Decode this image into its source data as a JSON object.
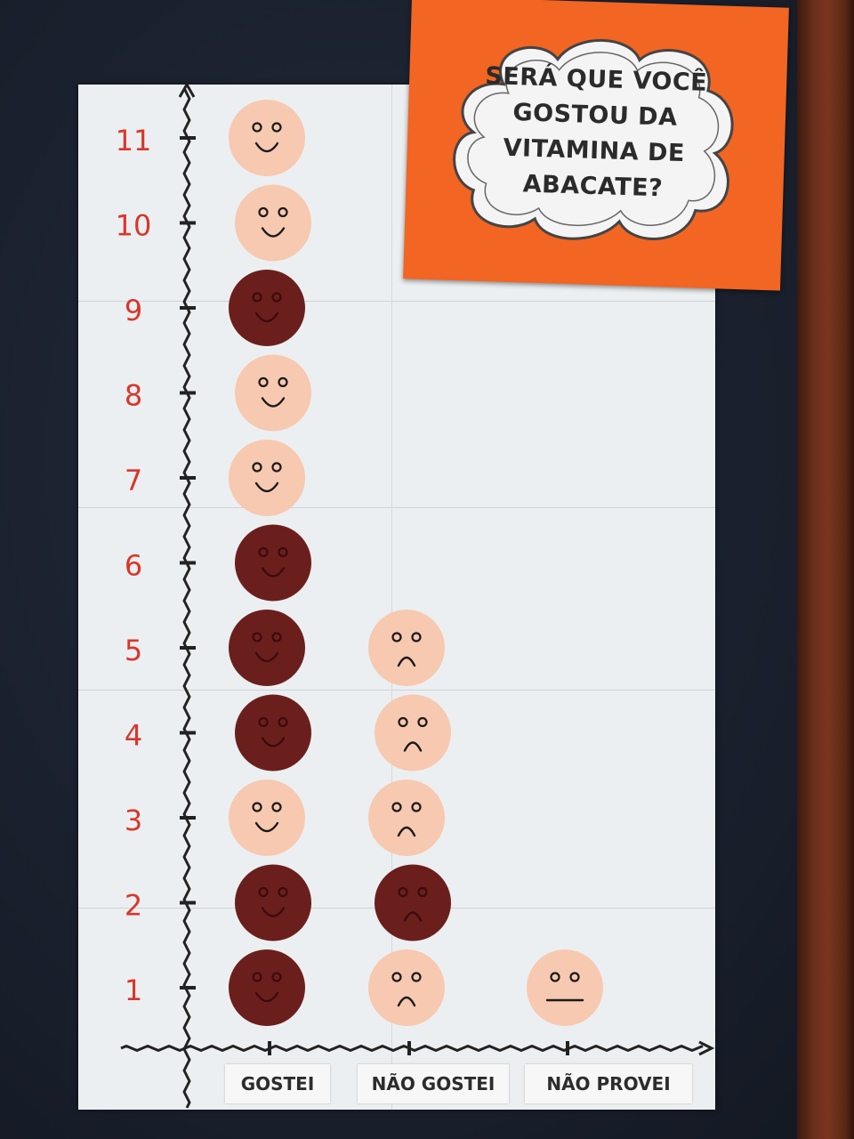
{
  "chart_data": {
    "type": "pictograph",
    "title": "SERÁ QUE VOCÊ GOSTOU DA VITAMINA DE ABACATE?",
    "categories": [
      "GOSTEI",
      "NÃO GOSTEI",
      "NÃO PROVEI"
    ],
    "values": [
      11,
      5,
      1
    ],
    "y_tick_labels": [
      "1",
      "2",
      "3",
      "4",
      "5",
      "6",
      "7",
      "8",
      "9",
      "10",
      "11"
    ],
    "ylim": [
      0,
      11
    ],
    "faces": [
      [
        "dark-happy",
        "dark-happy",
        "light-happy",
        "dark-happy",
        "dark-happy",
        "dark-happy",
        "light-happy",
        "light-happy",
        "dark-happy",
        "light-happy",
        "light-happy"
      ],
      [
        "light-sad",
        "dark-sad",
        "light-sad",
        "light-sad",
        "light-sad"
      ],
      [
        "light-neutral"
      ]
    ],
    "colors": {
      "light_face": "#f7c9b0",
      "dark_face": "#6b1f1d",
      "tick_label": "#d9362b",
      "axis": "#222222",
      "sign": "#f26522"
    }
  }
}
